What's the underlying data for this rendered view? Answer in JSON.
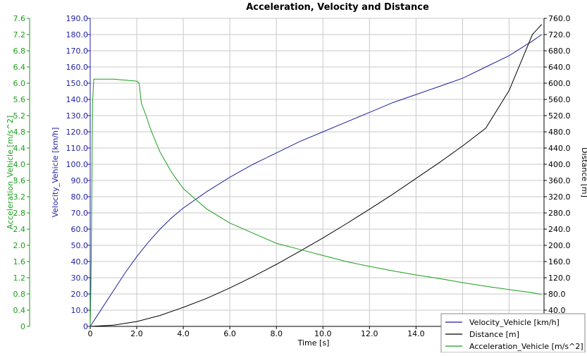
{
  "chart_data": {
    "type": "line",
    "title": "Acceleration, Velocity and Distance",
    "xlabel": "Time [s]",
    "xlim": [
      0,
      19.5
    ],
    "x_ticks": [
      "0",
      "2.0",
      "4.0",
      "6.0",
      "8.0",
      "10.0",
      "12.0",
      "14.0",
      "16.0"
    ],
    "grid": true,
    "legend_position": "bottom-right",
    "axes": {
      "acceleration": {
        "label": "Acceleration_Vehicle [m/s^2]",
        "min": 0,
        "max": 7.6,
        "ticks": [
          "0",
          "0.4",
          "0.8",
          "1.2",
          "1.6",
          "2.0",
          "2.4",
          "2.8",
          "3.2",
          "3.6",
          "4.0",
          "4.4",
          "4.8",
          "5.2",
          "5.6",
          "6.0",
          "6.4",
          "6.8",
          "7.2",
          "7.6"
        ],
        "color": "#1a9e1a"
      },
      "velocity": {
        "label": "Velocity_Vehicle [km/h]",
        "min": 0,
        "max": 190,
        "ticks": [
          "0",
          "10.0",
          "20.0",
          "30.0",
          "40.0",
          "50.0",
          "60.0",
          "70.0",
          "80.0",
          "90.0",
          "100.0",
          "110.0",
          "120.0",
          "130.0",
          "140.0",
          "150.0",
          "160.0",
          "170.0",
          "180.0",
          "190.0"
        ],
        "color": "#1f1fa0"
      },
      "distance": {
        "label": "Distance [m]",
        "min": 0,
        "max": 760,
        "ticks": [
          "40.0",
          "80.0",
          "120.0",
          "160.0",
          "200.0",
          "240.0",
          "280.0",
          "320.0",
          "360.0",
          "400.0",
          "440.0",
          "480.0",
          "520.0",
          "560.0",
          "600.0",
          "640.0",
          "680.0",
          "720.0",
          "760.0"
        ],
        "color": "#000000"
      }
    },
    "series": [
      {
        "name": "Velocity_Vehicle [km/h]",
        "axis": "velocity",
        "color": "#1f1fa0",
        "x": [
          0,
          0.5,
          1.0,
          1.5,
          2.0,
          2.5,
          3.0,
          3.5,
          4.0,
          5.0,
          6.0,
          7.0,
          8.0,
          9.0,
          10.0,
          11.0,
          12.0,
          13.0,
          14.0,
          15.0,
          16.0,
          17.0,
          18.0,
          19.0,
          19.4
        ],
        "y": [
          0,
          11,
          22,
          33,
          43,
          52,
          60,
          67,
          73,
          83,
          92,
          100,
          107,
          114,
          120,
          126,
          132,
          138,
          143,
          148,
          153,
          160,
          167,
          176,
          180
        ]
      },
      {
        "name": "Distance [m]",
        "axis": "distance",
        "color": "#000000",
        "x": [
          0,
          1.0,
          2.0,
          3.0,
          4.0,
          5.0,
          6.0,
          7.0,
          8.0,
          9.0,
          10.0,
          11.0,
          12.0,
          13.0,
          14.0,
          15.0,
          16.0,
          17.0,
          18.0,
          19.0,
          19.4
        ],
        "y": [
          0,
          3,
          12,
          27,
          47,
          69,
          95,
          123,
          153,
          185,
          218,
          253,
          289,
          326,
          365,
          404,
          445,
          489,
          582,
          720,
          745
        ]
      },
      {
        "name": "Acceleration_Vehicle [m/s^2]",
        "axis": "acceleration",
        "color": "#1a9e1a",
        "x": [
          0,
          0.02,
          0.05,
          0.08,
          0.1,
          0.15,
          0.3,
          1.0,
          2.0,
          2.1,
          2.2,
          2.4,
          2.6,
          3.0,
          3.5,
          4.0,
          4.5,
          5.0,
          6.0,
          7.0,
          8.0,
          9.0,
          10.0,
          11.0,
          12.0,
          13.0,
          14.0,
          15.0,
          16.0,
          17.0,
          18.0,
          19.0,
          19.4
        ],
        "y": [
          0,
          0.6,
          2.0,
          4.0,
          5.5,
          6.1,
          6.1,
          6.1,
          6.05,
          6.0,
          5.5,
          5.2,
          4.85,
          4.3,
          3.8,
          3.4,
          3.15,
          2.9,
          2.55,
          2.3,
          2.05,
          1.9,
          1.75,
          1.6,
          1.48,
          1.37,
          1.27,
          1.18,
          1.08,
          0.99,
          0.91,
          0.83,
          0.79
        ]
      }
    ]
  }
}
